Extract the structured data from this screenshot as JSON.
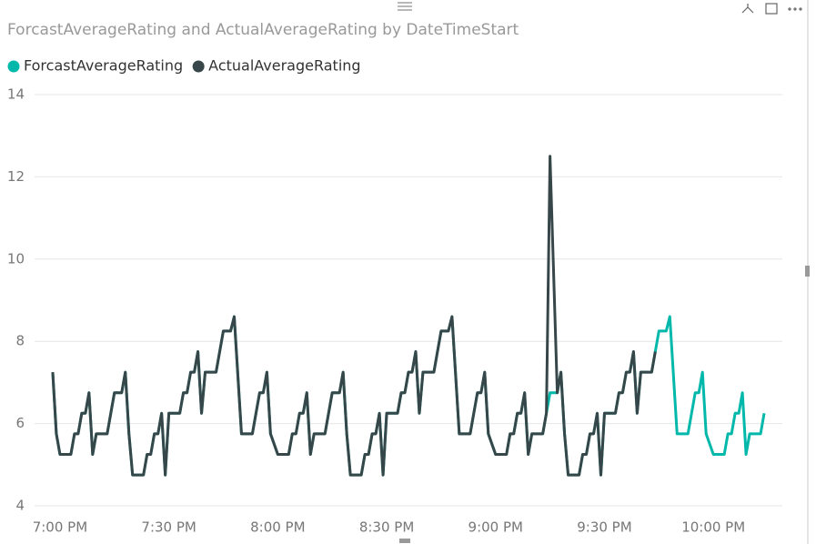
{
  "chart_data": {
    "type": "line",
    "title": "ForcastAverageRating and ActualAverageRating by DateTimeStart",
    "x": [
      "6:58 PM",
      "6:59 PM",
      "7:00 PM",
      "7:03 PM",
      "7:04 PM",
      "7:05 PM",
      "7:06 PM",
      "7:07 PM",
      "7:08 PM",
      "7:09 PM",
      "7:10 PM",
      "7:13 PM",
      "7:14 PM",
      "7:15 PM",
      "7:17 PM",
      "7:18 PM",
      "7:19 PM",
      "7:20 PM",
      "7:23 PM",
      "7:24 PM",
      "7:25 PM",
      "7:26 PM",
      "7:27 PM",
      "7:28 PM",
      "7:29 PM",
      "7:30 PM",
      "7:33 PM",
      "7:34 PM",
      "7:35 PM",
      "7:36 PM",
      "7:37 PM",
      "7:38 PM",
      "7:39 PM",
      "7:40 PM",
      "7:43 PM",
      "7:44 PM",
      "7:45 PM",
      "7:47 PM",
      "7:48 PM",
      "7:50 PM",
      "7:53 PM",
      "7:54 PM",
      "7:55 PM",
      "7:56 PM",
      "7:57 PM",
      "7:58 PM",
      "8:00 PM",
      "8:03 PM",
      "8:04 PM",
      "8:05 PM",
      "8:06 PM",
      "8:07 PM",
      "8:08 PM",
      "8:09 PM",
      "8:10 PM",
      "8:13 PM",
      "8:14 PM",
      "8:15 PM",
      "8:17 PM",
      "8:18 PM",
      "8:19 PM",
      "8:20 PM",
      "8:23 PM",
      "8:24 PM",
      "8:25 PM",
      "8:26 PM",
      "8:27 PM",
      "8:28 PM",
      "8:29 PM",
      "8:30 PM",
      "8:33 PM",
      "8:34 PM",
      "8:35 PM",
      "8:36 PM",
      "8:37 PM",
      "8:38 PM",
      "8:39 PM",
      "8:40 PM",
      "8:43 PM",
      "8:44 PM",
      "8:45 PM",
      "8:47 PM",
      "8:48 PM",
      "8:50 PM",
      "8:53 PM",
      "8:54 PM",
      "8:55 PM",
      "8:56 PM",
      "8:57 PM",
      "8:58 PM",
      "9:00 PM",
      "9:03 PM",
      "9:04 PM",
      "9:05 PM",
      "9:06 PM",
      "9:07 PM",
      "9:08 PM",
      "9:09 PM",
      "9:10 PM",
      "9:13 PM",
      "9:14 PM",
      "9:15 PM",
      "9:17 PM",
      "9:18 PM",
      "9:19 PM",
      "9:20 PM",
      "9:23 PM",
      "9:24 PM",
      "9:25 PM",
      "9:26 PM",
      "9:27 PM",
      "9:28 PM",
      "9:29 PM",
      "9:30 PM",
      "9:33 PM",
      "9:34 PM",
      "9:35 PM",
      "9:36 PM",
      "9:37 PM",
      "9:38 PM",
      "9:39 PM",
      "9:40 PM",
      "9:43 PM",
      "9:44 PM",
      "9:45 PM",
      "9:47 PM",
      "9:48 PM",
      "9:50 PM",
      "9:53 PM",
      "9:54 PM",
      "9:55 PM",
      "9:56 PM",
      "9:57 PM",
      "9:58 PM",
      "10:00 PM",
      "10:03 PM",
      "10:04 PM",
      "10:05 PM",
      "10:06 PM",
      "10:07 PM",
      "10:08 PM",
      "10:09 PM",
      "10:10 PM",
      "10:13 PM",
      "10:14 PM"
    ],
    "series": [
      {
        "name": "ForcastAverageRating",
        "color": "#01B8AA",
        "values": [
          7.25,
          5.75,
          5.25,
          5.25,
          5.75,
          5.75,
          6.25,
          6.25,
          6.75,
          5.25,
          5.75,
          5.75,
          6.25,
          6.75,
          6.75,
          7.25,
          5.75,
          4.75,
          4.75,
          5.25,
          5.25,
          5.75,
          5.75,
          6.25,
          4.75,
          6.25,
          6.25,
          6.75,
          6.75,
          7.25,
          7.25,
          7.75,
          6.25,
          7.25,
          7.25,
          7.75,
          8.25,
          8.25,
          8.6,
          5.75,
          5.75,
          6.25,
          6.75,
          6.75,
          7.25,
          5.75,
          5.25,
          5.25,
          5.75,
          5.75,
          6.25,
          6.25,
          6.75,
          5.25,
          5.75,
          5.75,
          6.25,
          6.75,
          6.75,
          7.25,
          5.75,
          4.75,
          4.75,
          5.25,
          5.25,
          5.75,
          5.75,
          6.25,
          4.75,
          6.25,
          6.25,
          6.75,
          6.75,
          7.25,
          7.25,
          7.75,
          6.25,
          7.25,
          7.25,
          7.75,
          8.25,
          8.25,
          8.6,
          5.75,
          5.75,
          6.25,
          6.75,
          6.75,
          7.25,
          5.75,
          5.25,
          5.25,
          5.75,
          5.75,
          6.25,
          6.25,
          6.75,
          5.25,
          5.75,
          5.75,
          6.25,
          6.75,
          6.75,
          7.25,
          5.75,
          4.75,
          4.75,
          5.25,
          5.25,
          5.75,
          5.75,
          6.25,
          4.75,
          6.25,
          6.25,
          6.75,
          6.75,
          7.25,
          7.25,
          7.75,
          6.25,
          7.25,
          7.25,
          7.75,
          8.25,
          8.25,
          8.6,
          5.75,
          5.75,
          6.25,
          6.75,
          6.75,
          7.25,
          5.75,
          5.25,
          5.25,
          5.75,
          5.75,
          6.25,
          6.25,
          6.75,
          5.25,
          5.75,
          5.75,
          6.25
        ]
      },
      {
        "name": "ActualAverageRating",
        "color": "#374649",
        "values": [
          7.25,
          5.75,
          5.25,
          5.25,
          5.75,
          5.75,
          6.25,
          6.25,
          6.75,
          5.25,
          5.75,
          5.75,
          6.25,
          6.75,
          6.75,
          7.25,
          5.75,
          4.75,
          4.75,
          5.25,
          5.25,
          5.75,
          5.75,
          6.25,
          4.75,
          6.25,
          6.25,
          6.75,
          6.75,
          7.25,
          7.25,
          7.75,
          6.25,
          7.25,
          7.25,
          7.75,
          8.25,
          8.25,
          8.6,
          5.75,
          5.75,
          6.25,
          6.75,
          6.75,
          7.25,
          5.75,
          5.25,
          5.25,
          5.75,
          5.75,
          6.25,
          6.25,
          6.75,
          5.25,
          5.75,
          5.75,
          6.25,
          6.75,
          6.75,
          7.25,
          5.75,
          4.75,
          4.75,
          5.25,
          5.25,
          5.75,
          5.75,
          6.25,
          4.75,
          6.25,
          6.25,
          6.75,
          6.75,
          7.25,
          7.25,
          7.75,
          6.25,
          7.25,
          7.25,
          7.75,
          8.25,
          8.25,
          8.6,
          5.75,
          5.75,
          6.25,
          6.75,
          6.75,
          7.25,
          5.75,
          5.25,
          5.25,
          5.75,
          5.75,
          6.25,
          6.25,
          6.75,
          5.25,
          5.75,
          5.75,
          6.25,
          12.5,
          6.75,
          7.25,
          5.75,
          4.75,
          4.75,
          5.25,
          5.25,
          5.75,
          5.75,
          6.25,
          4.75,
          6.25,
          6.25,
          6.75,
          6.75,
          7.25,
          7.25,
          7.75,
          6.25,
          7.25,
          7.25,
          7.75,
          null,
          null,
          null,
          null,
          null,
          null,
          null,
          null,
          null,
          null,
          null,
          null,
          null,
          null,
          null,
          null,
          null,
          null,
          null,
          null,
          null
        ]
      }
    ],
    "xlim": [
      "6:53 PM",
      "10:19 PM"
    ],
    "xticks": [
      "7:00 PM",
      "7:30 PM",
      "8:00 PM",
      "8:30 PM",
      "9:00 PM",
      "9:30 PM",
      "10:00 PM"
    ],
    "ylim": [
      4,
      14
    ],
    "yticks": [
      4,
      6,
      8,
      10,
      12,
      14
    ],
    "grid": true,
    "legend": "top-left"
  }
}
